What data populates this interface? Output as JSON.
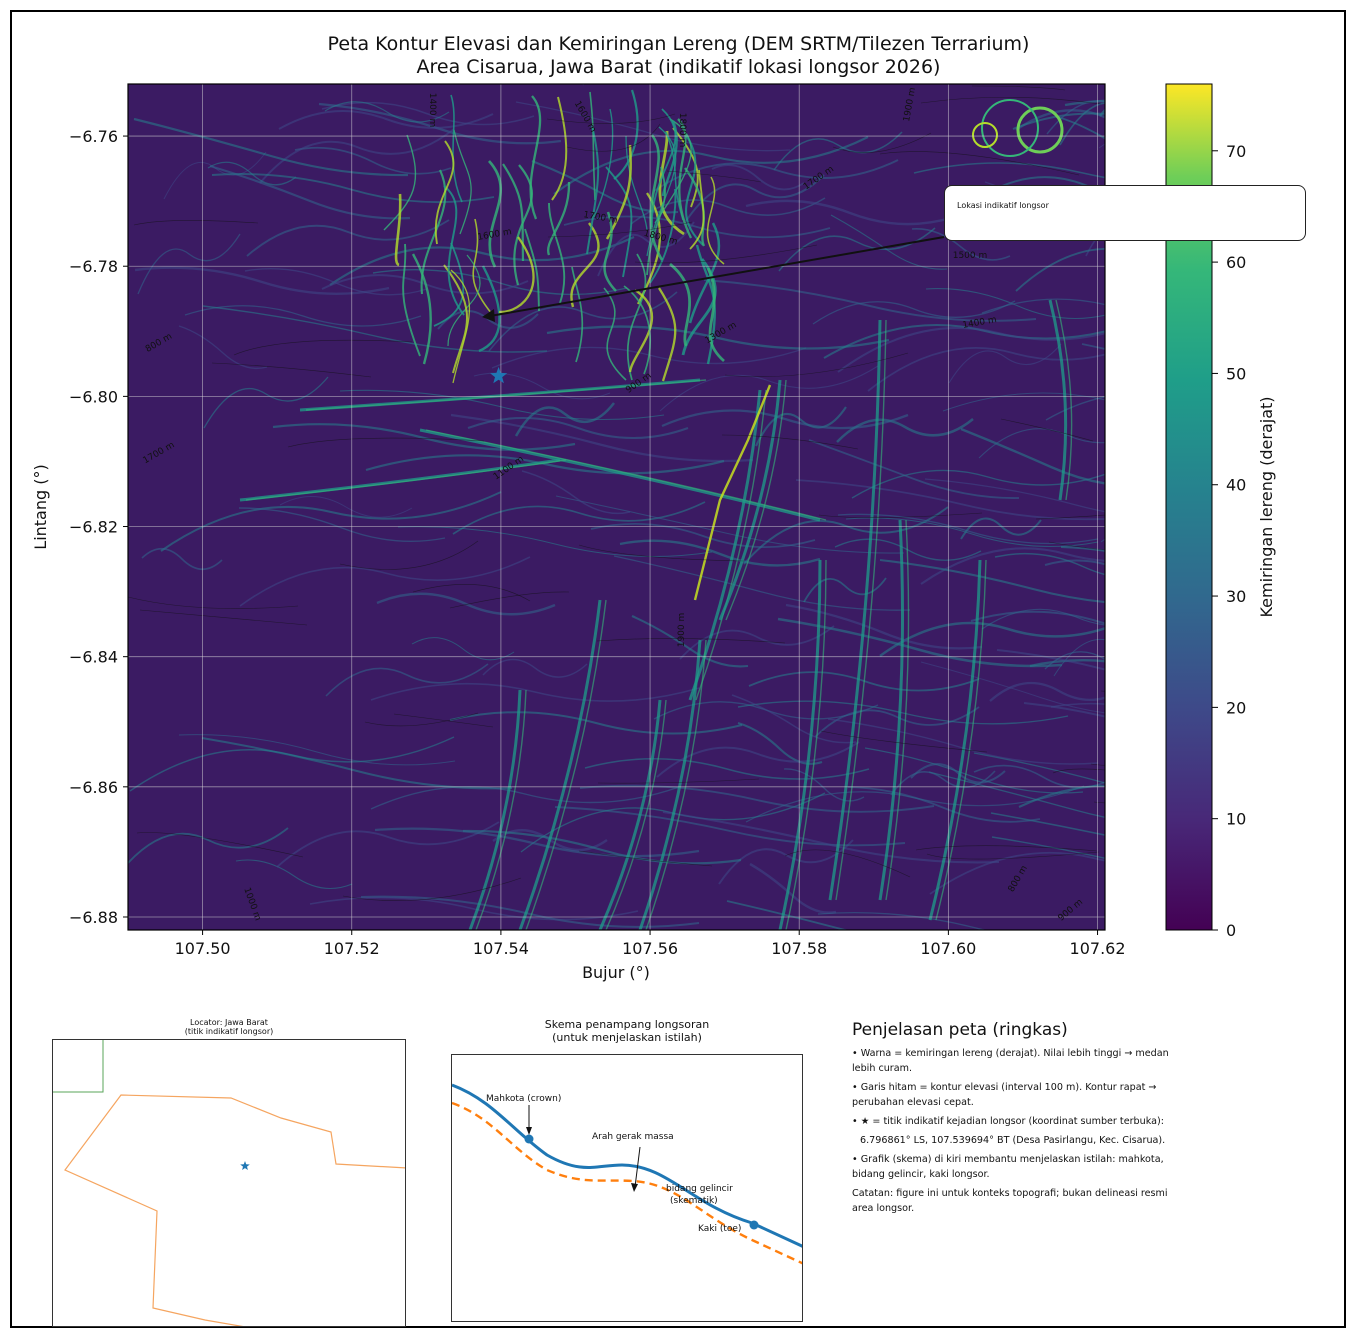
{
  "title": {
    "line1": "Peta Kontur Elevasi dan Kemiringan Lereng (DEM SRTM/Tilezen Terrarium)",
    "line2": "Area Cisarua, Jawa Barat (indikatif lokasi longsor 2026)"
  },
  "colors": {
    "low": "#440154",
    "mid": "#21918c",
    "high": "#fde725",
    "star": "#1f77b4",
    "boundary": "#ff7f0e"
  },
  "map": {
    "xlabel": "Bujur (°)",
    "ylabel": "Lintang (°)",
    "xlim": [
      107.49,
      107.621
    ],
    "ylim": [
      -6.882,
      -6.752
    ],
    "xticks": [
      "107.50",
      "107.52",
      "107.54",
      "107.56",
      "107.58",
      "107.60",
      "107.62"
    ],
    "yticks": [
      "−6.76",
      "−6.78",
      "−6.80",
      "−6.82",
      "−6.84",
      "−6.86",
      "−6.88"
    ],
    "grid": true,
    "marker": {
      "lon": 107.539694,
      "lat": -6.796861,
      "icon": "star-icon"
    },
    "contour_labels": [
      "1400 m",
      "1600 m",
      "1700 m",
      "1800 m",
      "1600 m",
      "1800 m",
      "1900 m",
      "1700 m",
      "1500 m",
      "1400 m",
      "1300 m",
      "900 m",
      "800 m",
      "1700 m",
      "1100 m",
      "800 m",
      "1000 m",
      "900 m",
      "1900 m"
    ],
    "callout": "Lokasi indikatif longsor"
  },
  "colorbar": {
    "label": "Kemiringan lereng (derajat)",
    "range": [
      0,
      76
    ],
    "ticks": [
      "0",
      "10",
      "20",
      "30",
      "40",
      "50",
      "60",
      "70"
    ]
  },
  "locator": {
    "title_line1": "Locator: Jawa Barat",
    "title_line2": "(titik indikatif longsor)"
  },
  "schema": {
    "title_line1": "Skema penampang longsoran",
    "title_line2": "(untuk menjelaskan istilah)",
    "crown": "Mahkota (crown)",
    "direction": "Arah gerak massa",
    "slip_line1": "bidang gelincir",
    "slip_line2": "(skematik)",
    "toe": "Kaki (toe)"
  },
  "legend": {
    "title": "Penjelasan peta (ringkas)",
    "items": [
      "• Warna = kemiringan lereng (derajat). Nilai lebih tinggi → medan lebih curam.",
      "• Garis hitam = kontur elevasi (interval 100 m). Kontur rapat → perubahan elevasi cepat.",
      "• ★ = titik indikatif kejadian longsor (koordinat sumber terbuka):",
      "6.796861° LS, 107.539694° BT (Desa Pasirlangu, Kec. Cisarua).",
      "• Grafik (skema) di kiri membantu menjelaskan istilah: mahkota, bidang gelincir, kaki longsor.",
      "Catatan: figure ini untuk konteks topografi; bukan delineasi resmi area longsor."
    ]
  }
}
